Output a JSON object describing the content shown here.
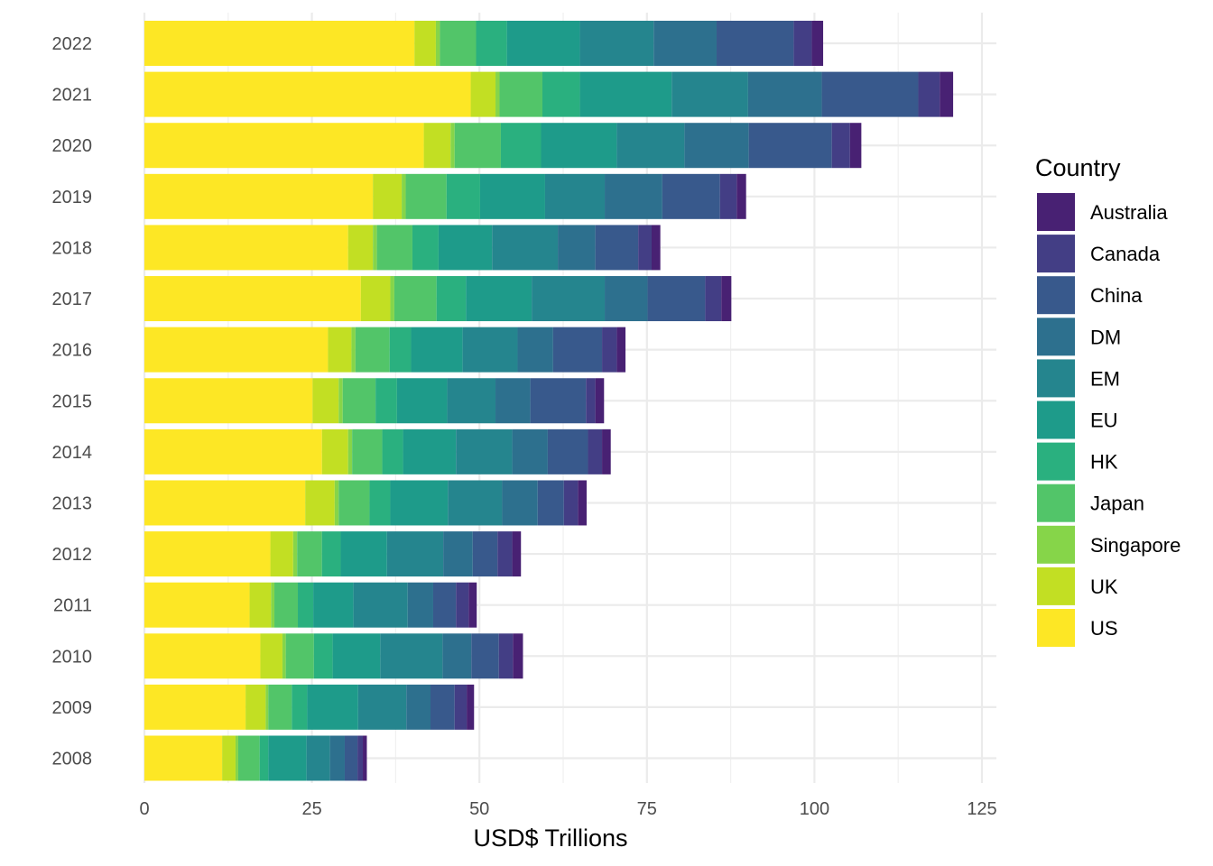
{
  "chart_data": {
    "type": "bar",
    "orientation": "horizontal",
    "stacked": true,
    "title": "",
    "xlabel": "USD$ Trillions",
    "ylabel": "",
    "xlim": [
      0,
      127
    ],
    "x_ticks": [
      0,
      25,
      50,
      75,
      100,
      125
    ],
    "x_tick_labels": [
      "0",
      "25",
      "50",
      "75",
      "100",
      "125"
    ],
    "grid": true,
    "legend": {
      "title": "Country",
      "placement": "right"
    },
    "categories": [
      "2022",
      "2021",
      "2020",
      "2019",
      "2018",
      "2017",
      "2016",
      "2015",
      "2014",
      "2013",
      "2012",
      "2011",
      "2010",
      "2009",
      "2008"
    ],
    "stack_order": [
      "US",
      "UK",
      "Singapore",
      "Japan",
      "HK",
      "EU",
      "EM",
      "DM",
      "China",
      "Canada",
      "Australia"
    ],
    "legend_order": [
      "Australia",
      "Canada",
      "China",
      "DM",
      "EM",
      "EU",
      "HK",
      "Japan",
      "Singapore",
      "UK",
      "US"
    ],
    "series": [
      {
        "name": "US",
        "color": "#FDE725",
        "values": [
          40.3,
          48.7,
          41.7,
          34.1,
          30.4,
          32.3,
          27.4,
          25.1,
          26.5,
          24.0,
          18.8,
          15.7,
          17.3,
          15.1,
          11.6
        ]
      },
      {
        "name": "UK",
        "color": "#C2DF23",
        "values": [
          3.2,
          3.7,
          4.0,
          4.3,
          3.7,
          4.4,
          3.5,
          3.9,
          3.9,
          4.4,
          3.4,
          3.2,
          3.3,
          3.0,
          2.0
        ]
      },
      {
        "name": "Singapore",
        "color": "#86D549",
        "values": [
          0.6,
          0.6,
          0.6,
          0.6,
          0.6,
          0.6,
          0.6,
          0.6,
          0.6,
          0.6,
          0.6,
          0.5,
          0.5,
          0.4,
          0.4
        ]
      },
      {
        "name": "Japan",
        "color": "#52C569",
        "values": [
          5.4,
          6.4,
          6.9,
          6.1,
          5.3,
          6.3,
          5.1,
          4.9,
          4.5,
          4.6,
          3.7,
          3.5,
          4.2,
          3.5,
          3.2
        ]
      },
      {
        "name": "HK",
        "color": "#2AB07F",
        "values": [
          4.6,
          5.6,
          6.0,
          5.0,
          3.9,
          4.4,
          3.2,
          3.2,
          3.1,
          3.1,
          2.8,
          2.3,
          2.8,
          2.3,
          1.3
        ]
      },
      {
        "name": "EU",
        "color": "#1E9B8A",
        "values": [
          10.9,
          13.7,
          11.3,
          9.7,
          8.0,
          9.8,
          7.7,
          7.5,
          7.9,
          8.6,
          6.9,
          6.0,
          7.1,
          7.6,
          5.7
        ]
      },
      {
        "name": "EM",
        "color": "#25858E",
        "values": [
          11.0,
          11.4,
          10.1,
          8.9,
          9.8,
          10.9,
          8.2,
          7.2,
          8.4,
          8.1,
          8.4,
          8.1,
          9.3,
          7.2,
          3.5
        ]
      },
      {
        "name": "DM",
        "color": "#2D708E",
        "values": [
          9.4,
          11.0,
          9.6,
          8.6,
          5.6,
          6.4,
          5.3,
          5.2,
          5.3,
          5.3,
          4.4,
          3.8,
          4.3,
          3.6,
          2.2
        ]
      },
      {
        "name": "China",
        "color": "#38598C",
        "values": [
          11.5,
          14.4,
          12.4,
          8.6,
          6.4,
          8.6,
          7.3,
          8.3,
          6.0,
          3.9,
          3.7,
          3.4,
          4.1,
          3.6,
          1.9
        ]
      },
      {
        "name": "Canada",
        "color": "#433E85",
        "values": [
          2.7,
          3.2,
          2.7,
          2.5,
          2.0,
          2.4,
          2.2,
          1.4,
          2.1,
          2.1,
          2.2,
          1.9,
          2.1,
          1.8,
          0.8
        ]
      },
      {
        "name": "Australia",
        "color": "#482173",
        "values": [
          1.7,
          2.0,
          1.7,
          1.4,
          1.3,
          1.5,
          1.3,
          1.3,
          1.3,
          1.3,
          1.3,
          1.2,
          1.5,
          1.1,
          0.6
        ]
      }
    ]
  }
}
